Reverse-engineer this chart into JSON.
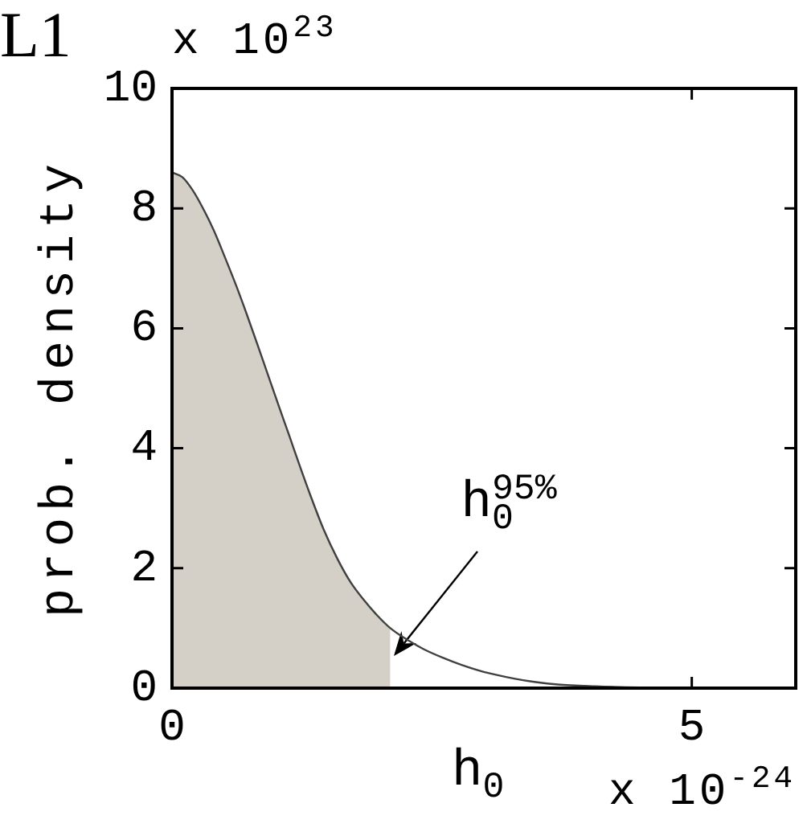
{
  "chart_data": {
    "type": "line",
    "title": "L1",
    "xlabel": "h$_{0}$",
    "ylabel": "prob. density",
    "annotations": [
      {
        "text": "h$_{0}$$^{95%}$",
        "x": 2.1,
        "y": 0.5
      },
      "x 10$^{23}$",
      "x 10$^{-24}$"
    ],
    "series": [
      {
        "type": "area",
        "color": "#d4d0c8",
        "x": [
          0,
          0.1,
          0.2,
          0.28,
          0.4,
          0.51,
          0.62,
          0.72,
          0.82,
          0.92,
          1.02,
          1.13,
          1.23,
          1.33,
          1.46,
          1.59,
          1.72,
          1.85,
          1.97,
          2.1
        ],
        "values": [
          8.6,
          8.52,
          8.3,
          8.06,
          7.64,
          7.18,
          6.7,
          6.23,
          5.74,
          5.24,
          4.74,
          4.2,
          3.7,
          3.22,
          2.64,
          2.16,
          1.76,
          1.46,
          1.22,
          1.0
        ]
      },
      {
        "color": "#404040",
        "x": [
          0,
          0.1,
          0.2,
          0.28,
          0.4,
          0.51,
          0.62,
          0.72,
          0.82,
          0.92,
          1.02,
          1.13,
          1.23,
          1.33,
          1.46,
          1.59,
          1.72,
          1.85,
          1.97,
          2.1,
          2.25,
          2.42,
          2.6,
          2.78,
          3,
          3.29,
          3.5,
          3.71,
          4.07,
          4.5,
          5,
          6
        ],
        "values": [
          8.6,
          8.52,
          8.3,
          8.06,
          7.64,
          7.18,
          6.7,
          6.23,
          5.74,
          5.24,
          4.74,
          4.2,
          3.7,
          3.22,
          2.64,
          2.16,
          1.76,
          1.46,
          1.22,
          1.0,
          0.82,
          0.65,
          0.51,
          0.39,
          0.27,
          0.16,
          0.1,
          0.06,
          0.03,
          0.01,
          0,
          0
        ]
      }
    ],
    "xlim": [
      0,
      6
    ],
    "ylim": [
      0,
      10
    ],
    "xticks": [
      0,
      5
    ],
    "yticks": [
      0,
      2,
      4,
      6,
      8,
      10
    ],
    "marker": "none"
  }
}
